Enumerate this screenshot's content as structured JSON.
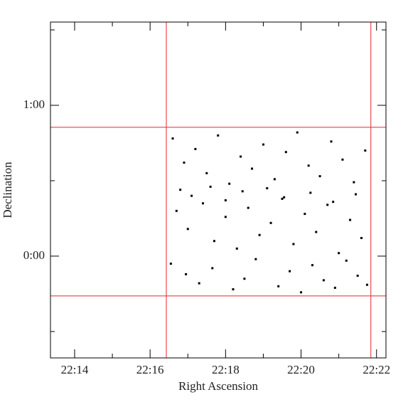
{
  "chart_data": {
    "type": "scatter",
    "x_label": "Right Ascension",
    "y_label": "Declination",
    "xlim": [
      13.36,
      22.25
    ],
    "ylim": [
      -0.675,
      1.552
    ],
    "xticks": [
      {
        "value": 14,
        "label": "22:14"
      },
      {
        "value": 16,
        "label": "22:16"
      },
      {
        "value": 18,
        "label": "22:18"
      },
      {
        "value": 20,
        "label": "22:20"
      },
      {
        "value": 22,
        "label": "22:22"
      }
    ],
    "xminorticks": [
      15,
      17,
      19,
      21
    ],
    "yticks": [
      {
        "value": 0,
        "label": "0:00"
      },
      {
        "value": 1,
        "label": "1:00"
      }
    ],
    "yminorticks": [
      -0.5,
      0.5,
      1.5
    ],
    "boundary_color": "#e8262a",
    "boundary_x": [
      16.43,
      21.85
    ],
    "boundary_y": [
      -0.264,
      0.854
    ],
    "color": "#000000",
    "x": [
      16.6,
      16.9,
      17.2,
      17.5,
      17.8,
      18.1,
      18.4,
      18.7,
      19.0,
      19.3,
      19.6,
      19.9,
      20.2,
      20.5,
      20.8,
      21.1,
      21.4,
      21.7,
      16.7,
      17.0,
      17.4,
      17.7,
      18.0,
      18.3,
      18.6,
      18.9,
      19.2,
      19.5,
      19.8,
      20.1,
      20.4,
      20.7,
      21.0,
      21.3,
      21.6,
      16.55,
      16.95,
      17.3,
      17.65,
      18.2,
      18.5,
      18.8,
      19.4,
      19.7,
      20.0,
      20.3,
      20.6,
      20.9,
      21.2,
      21.5,
      21.75,
      16.8,
      17.1,
      17.6,
      18.0,
      18.45,
      19.1,
      19.55,
      20.25,
      20.85,
      21.45
    ],
    "y": [
      0.78,
      0.62,
      0.71,
      0.55,
      0.8,
      0.48,
      0.66,
      0.58,
      0.74,
      0.51,
      0.69,
      0.82,
      0.6,
      0.53,
      0.76,
      0.64,
      0.49,
      0.7,
      0.3,
      0.18,
      0.35,
      0.1,
      0.26,
      0.05,
      0.32,
      0.14,
      0.22,
      0.38,
      0.08,
      0.28,
      0.16,
      0.34,
      0.02,
      0.24,
      0.12,
      -0.05,
      -0.12,
      -0.18,
      -0.08,
      -0.22,
      -0.15,
      -0.02,
      -0.2,
      -0.1,
      -0.24,
      -0.06,
      -0.16,
      -0.21,
      -0.03,
      -0.13,
      -0.19,
      0.44,
      0.4,
      0.46,
      0.37,
      0.43,
      0.45,
      0.39,
      0.42,
      0.36,
      0.41
    ]
  }
}
